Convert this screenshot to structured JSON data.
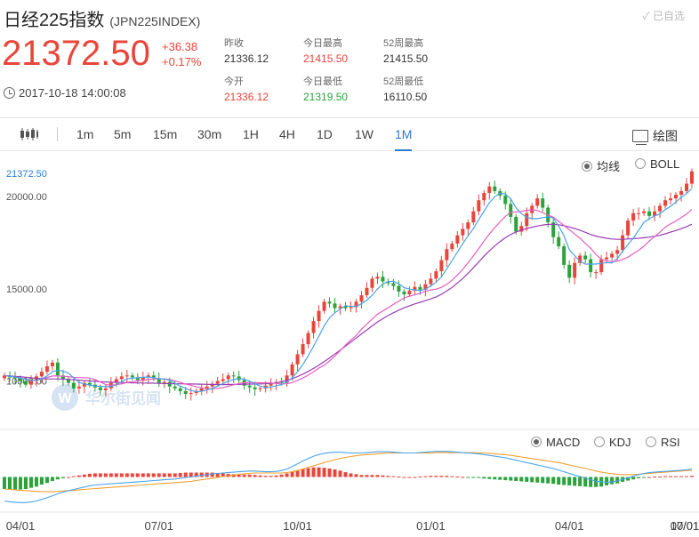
{
  "header": {
    "title": "日经225指数",
    "code": "(JPN225INDEX)",
    "saved": "✓ 已自选",
    "price": "21372.50",
    "change": "+36.38",
    "change_pct": "+0.17%",
    "time": "2017-10-18 14:00:08"
  },
  "stats": {
    "prev_close": {
      "label": "昨收",
      "value": "21336.12"
    },
    "open": {
      "label": "今开",
      "value": "21336.12"
    },
    "day_high": {
      "label": "今日最高",
      "value": "21415.50"
    },
    "day_low": {
      "label": "今日最低",
      "value": "21319.50"
    },
    "w52_high": {
      "label": "52周最高",
      "value": "21415.50"
    },
    "w52_low": {
      "label": "52周最低",
      "value": "16110.50"
    }
  },
  "toolbar": {
    "tabs": [
      "1m",
      "5m",
      "15m",
      "30m",
      "1H",
      "4H",
      "1D",
      "1W",
      "1M"
    ],
    "active": "1M",
    "draw_label": "绘图"
  },
  "overlays": {
    "ma": "均线",
    "boll": "BOLL"
  },
  "indicators": {
    "macd": "MACD",
    "kdj": "KDJ",
    "rsi": "RSI"
  },
  "watermark": "华尔街见闻",
  "colors": {
    "up": "#e8463a",
    "down": "#2aa33b",
    "accent": "#2b7bd0"
  },
  "chart_data": {
    "type": "candlestick",
    "last_price_label": "21372.50",
    "y_ticks": [
      "20000.00",
      "15000.00",
      "10000.00"
    ],
    "x_ticks": [
      "04/01",
      "07/01",
      "10/01",
      "01/01",
      "04/01",
      "07/01",
      "10/01"
    ],
    "ylim": [
      8000,
      21500
    ],
    "closes": [
      10300,
      10200,
      10150,
      10000,
      9800,
      10000,
      10250,
      10500,
      10800,
      11000,
      10300,
      10100,
      9900,
      9600,
      9700,
      9900,
      9800,
      9650,
      9500,
      9600,
      9900,
      10100,
      10250,
      10300,
      10200,
      10050,
      10200,
      10300,
      10150,
      9900,
      9950,
      9700,
      9600,
      9450,
      9300,
      9350,
      9450,
      9600,
      9700,
      9850,
      10000,
      10100,
      10300,
      10250,
      10050,
      9750,
      9650,
      9550,
      9600,
      9750,
      9850,
      9950,
      9900,
      10300,
      10900,
      11450,
      12000,
      12600,
      13250,
      13800,
      14300,
      14200,
      13950,
      14050,
      13950,
      14000,
      14300,
      14650,
      15050,
      15550,
      15650,
      15400,
      15300,
      15150,
      14850,
      14700,
      14900,
      15100,
      14950,
      15250,
      15550,
      15950,
      16550,
      17150,
      17450,
      17900,
      18250,
      18600,
      19200,
      19800,
      20200,
      20550,
      20300,
      20050,
      19600,
      18900,
      18100,
      18400,
      19100,
      19500,
      19900,
      19400,
      18600,
      17800,
      17300,
      16300,
      15600,
      16400,
      16800,
      16600,
      15900,
      15900,
      16600,
      16700,
      16900,
      17100,
      17900,
      18700,
      19100,
      19100,
      19200,
      18950,
      19200,
      19500,
      19800,
      19900,
      20100,
      20300,
      20700,
      21372.5
    ],
    "ma5": [
      10300,
      10250,
      10217,
      10163,
      10090,
      10030,
      10040,
      10110,
      10270,
      10510,
      10570,
      10540,
      10420,
      10180,
      9920,
      9840,
      9780,
      9730,
      9710,
      9690,
      9690,
      9810,
      9970,
      10110,
      10150,
      10180,
      10200,
      10220,
      10180,
      10120,
      10100,
      10040,
      9880,
      9720,
      9600,
      9480,
      9430,
      9440,
      9510,
      9600,
      9720,
      9860,
      9990,
      10080,
      10140,
      10090,
      10000,
      9850,
      9720,
      9660,
      9680,
      9740,
      9810,
      9950,
      10180,
      10500,
      10900,
      11370,
      11880,
      12420,
      12990,
      13420,
      13700,
      13900,
      14090,
      14030,
      14050,
      14190,
      14390,
      14650,
      14990,
      15260,
      15390,
      15410,
      15270,
      15070,
      14980,
      14940,
      14900,
      14980,
      15150,
      15360,
      15640,
      16090,
      16530,
      16980,
      17450,
      17870,
      18270,
      18750,
      19210,
      19670,
      19990,
      20180,
      20140,
      19880,
      19390,
      19080,
      18880,
      18800,
      18800,
      18860,
      18900,
      18840,
      18400,
      17880,
      17120,
      16800,
      16480,
      16340,
      16340,
      16340,
      16380,
      16420,
      16400,
      16640,
      17040,
      17400,
      17740,
      18180,
      18600,
      18800,
      18950,
      19060,
      19290,
      19470,
      19700,
      19960,
      20160,
      20440
    ],
    "ma10": [
      10300,
      10250,
      10217,
      10163,
      10090,
      10033,
      10043,
      10100,
      10189,
      10270,
      10270,
      10260,
      10235,
      10195,
      10185,
      10175,
      10160,
      10075,
      9945,
      9805,
      9765,
      9805,
      9845,
      9915,
      9965,
      10000,
      10040,
      10080,
      10105,
      10110,
      10115,
      10075,
      10010,
      9925,
      9835,
      9765,
      9690,
      9620,
      9575,
      9575,
      9600,
      9645,
      9715,
      9795,
      9865,
      9905,
      9920,
      9915,
      9905,
      9905,
      9890,
      9875,
      9840,
      9845,
      9915,
      10030,
      10165,
      10320,
      10500,
      10700,
      10850,
      11080,
      11350,
      11640,
      11950,
      12220,
      12470,
      12810,
      13080,
      13360,
      13620,
      13800,
      13970,
      14160,
      14330,
      14510,
      14600,
      14670,
      14760,
      14860,
      14940,
      14980,
      15080,
      15240,
      15470,
      15750,
      16050,
      16410,
      16790,
      17180,
      17590,
      17970,
      18320,
      18630,
      18930,
      19150,
      19160,
      19200,
      19260,
      19280,
      19250,
      19130,
      19000,
      18880,
      18660,
      18430,
      18200,
      17970,
      17740,
      17460,
      17200,
      16860,
      16600,
      16520,
      16470,
      16490,
      16590,
      16710,
      16910,
      17090,
      17310,
      17590,
      17830,
      18070,
      18340,
      18520,
      18670,
      18860,
      19050,
      19300
    ],
    "ma20": [
      10300,
      10270,
      10250,
      10230,
      10200,
      10170,
      10140,
      10120,
      10110,
      10110,
      10110,
      10100,
      10090,
      10070,
      10050,
      10020,
      10000,
      9980,
      9960,
      9950,
      9940,
      9930,
      9920,
      9910,
      9900,
      9895,
      9890,
      9885,
      9880,
      9870,
      9860,
      9855,
      9850,
      9845,
      9840,
      9835,
      9830,
      9825,
      9820,
      9815,
      9810,
      9810,
      9810,
      9815,
      9820,
      9825,
      9830,
      9835,
      9840,
      9845,
      9860,
      9900,
      9960,
      10040,
      10130,
      10240,
      10370,
      10520,
      10680,
      10860,
      11050,
      11250,
      11460,
      11670,
      11890,
      12110,
      12330,
      12550,
      12770,
      12990,
      13200,
      13380,
      13550,
      13700,
      13840,
      13970,
      14080,
      14180,
      14270,
      14360,
      14450,
      14560,
      14700,
      14880,
      15080,
      15310,
      15560,
      15840,
      16140,
      16450,
      16770,
      17060,
      17320,
      17560,
      17770,
      17950,
      18080,
      18180,
      18270,
      18340,
      18400,
      18460,
      18490,
      18500,
      18470,
      18420,
      18350,
      18270,
      18170,
      18060,
      17940,
      17860,
      17790,
      17740,
      17700,
      17680,
      17680,
      17700,
      17720,
      17740,
      17770,
      17800,
      17850,
      17900,
      17980,
      18070,
      18160,
      18260,
      18370,
      18500
    ],
    "macd": {
      "dif": [
        -60,
        -62,
        -63,
        -64,
        -64,
        -62,
        -60,
        -56,
        -52,
        -47,
        -42,
        -38,
        -34,
        -31,
        -28,
        -25,
        -22,
        -20,
        -19,
        -18,
        -17,
        -16,
        -15,
        -14,
        -13,
        -12,
        -11,
        -10,
        -9,
        -8,
        -7,
        -6,
        -5,
        -3,
        -1,
        0,
        2,
        4,
        6,
        8,
        9,
        10,
        11,
        12,
        13,
        14,
        15,
        15,
        14,
        13,
        13,
        14,
        16,
        20,
        26,
        33,
        40,
        46,
        52,
        56,
        59,
        61,
        62,
        62,
        61,
        60,
        60,
        60,
        61,
        62,
        63,
        63,
        63,
        62,
        61,
        60,
        60,
        60,
        61,
        62,
        63,
        64,
        64,
        64,
        63,
        62,
        61,
        60,
        59,
        58,
        56,
        54,
        52,
        50,
        48,
        45,
        42,
        39,
        36,
        33,
        30,
        27,
        24,
        21,
        17,
        13,
        9,
        5,
        1,
        -3,
        -7,
        -10,
        -12,
        -13,
        -12,
        -10,
        -6,
        -2,
        2,
        6,
        9,
        11,
        12,
        13,
        14,
        15,
        16,
        17,
        18,
        20
      ],
      "dea": [
        -30,
        -31,
        -32,
        -33,
        -34,
        -35,
        -36,
        -37,
        -37,
        -37,
        -36,
        -35,
        -34,
        -33,
        -32,
        -31,
        -30,
        -29,
        -28,
        -27,
        -26,
        -25,
        -24,
        -23,
        -22,
        -21,
        -20,
        -19,
        -18,
        -17,
        -16,
        -15,
        -14,
        -13,
        -12,
        -11,
        -9,
        -7,
        -5,
        -3,
        -1,
        1,
        3,
        5,
        7,
        8,
        9,
        10,
        10,
        10,
        10,
        10,
        10,
        11,
        13,
        16,
        20,
        24,
        28,
        32,
        36,
        40,
        43,
        46,
        49,
        51,
        53,
        55,
        56,
        57,
        58,
        59,
        60,
        60,
        60,
        60,
        60,
        60,
        60,
        60,
        60,
        61,
        61,
        61,
        61,
        61,
        61,
        61,
        61,
        60,
        60,
        59,
        58,
        57,
        56,
        54,
        52,
        50,
        48,
        46,
        44,
        42,
        40,
        38,
        36,
        33,
        30,
        27,
        24,
        21,
        18,
        15,
        12,
        10,
        8,
        7,
        6,
        6,
        6,
        7,
        8,
        9,
        10,
        11,
        12,
        13,
        14,
        15,
        16,
        17
      ],
      "hist": [
        -30,
        -31,
        -31,
        -31,
        -30,
        -27,
        -24,
        -19,
        -15,
        -10,
        -6,
        -3,
        0,
        2,
        4,
        6,
        8,
        9,
        9,
        9,
        9,
        9,
        9,
        9,
        9,
        9,
        9,
        9,
        9,
        9,
        9,
        9,
        9,
        10,
        11,
        11,
        11,
        11,
        11,
        11,
        10,
        9,
        8,
        7,
        6,
        6,
        6,
        5,
        4,
        3,
        3,
        4,
        6,
        9,
        13,
        17,
        20,
        22,
        24,
        24,
        23,
        21,
        19,
        16,
        12,
        9,
        7,
        5,
        5,
        5,
        5,
        4,
        3,
        2,
        1,
        0,
        0,
        0,
        1,
        2,
        3,
        3,
        3,
        3,
        2,
        1,
        0,
        -1,
        -2,
        -2,
        -4,
        -5,
        -6,
        -7,
        -8,
        -9,
        -10,
        -11,
        -12,
        -13,
        -14,
        -15,
        -16,
        -17,
        -19,
        -20,
        -21,
        -22,
        -23,
        -24,
        -25,
        -25,
        -24,
        -21,
        -18,
        -16,
        -12,
        -9,
        -6,
        -3,
        -1,
        0,
        1,
        1,
        2,
        2,
        2,
        2,
        2,
        3
      ],
      "ylim": [
        -70,
        70
      ]
    }
  }
}
